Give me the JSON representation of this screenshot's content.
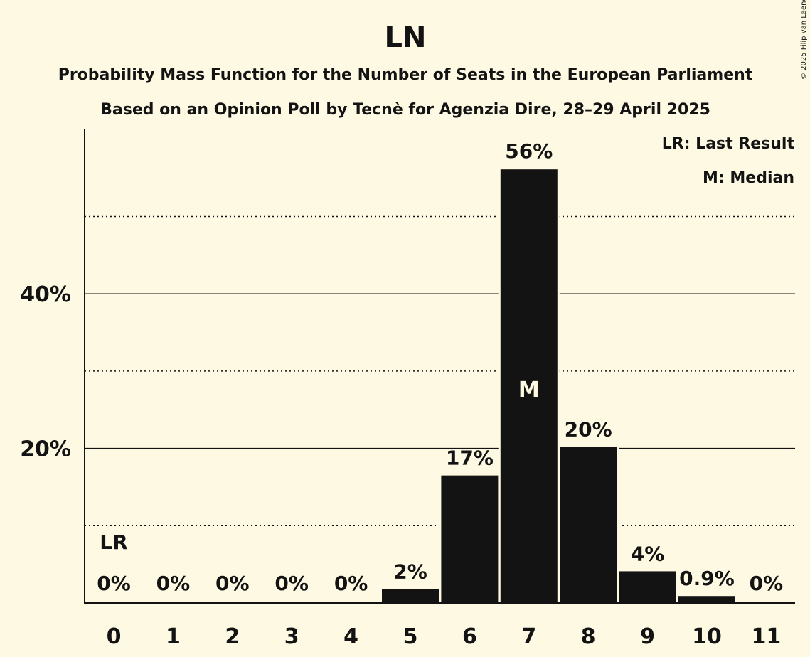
{
  "chart_data": {
    "type": "bar",
    "title": "LN",
    "subtitle": "Probability Mass Function for the Number of Seats in the European Parliament",
    "subtitle2": "Based on an Opinion Poll by Tecnè for Agenzia Dire, 28–29 April 2025",
    "copyright": "© 2025 Filip van Laenen",
    "categories": [
      "0",
      "1",
      "2",
      "3",
      "4",
      "5",
      "6",
      "7",
      "8",
      "9",
      "10",
      "11"
    ],
    "values": [
      0,
      0,
      0,
      0,
      0,
      1.8,
      16.5,
      56.1,
      20.2,
      4.1,
      0.9,
      0
    ],
    "value_labels": [
      "0%",
      "0%",
      "0%",
      "0%",
      "0%",
      "2%",
      "17%",
      "56%",
      "20%",
      "4%",
      "0.9%",
      "0%"
    ],
    "ylim": [
      0,
      61
    ],
    "yticks": [
      {
        "value": 20,
        "label": "20%"
      },
      {
        "value": 40,
        "label": "40%"
      }
    ],
    "minor_gridlines": [
      10,
      30,
      50
    ],
    "last_result": {
      "index": 0,
      "label": "LR"
    },
    "median": {
      "index": 7,
      "label": "M"
    },
    "legend": [
      "LR: Last Result",
      "M: Median"
    ],
    "legend_position": "top-right",
    "colors": {
      "bar": "#131313",
      "background": "#fdf9e2",
      "median_text": "#fdf9e2"
    }
  }
}
